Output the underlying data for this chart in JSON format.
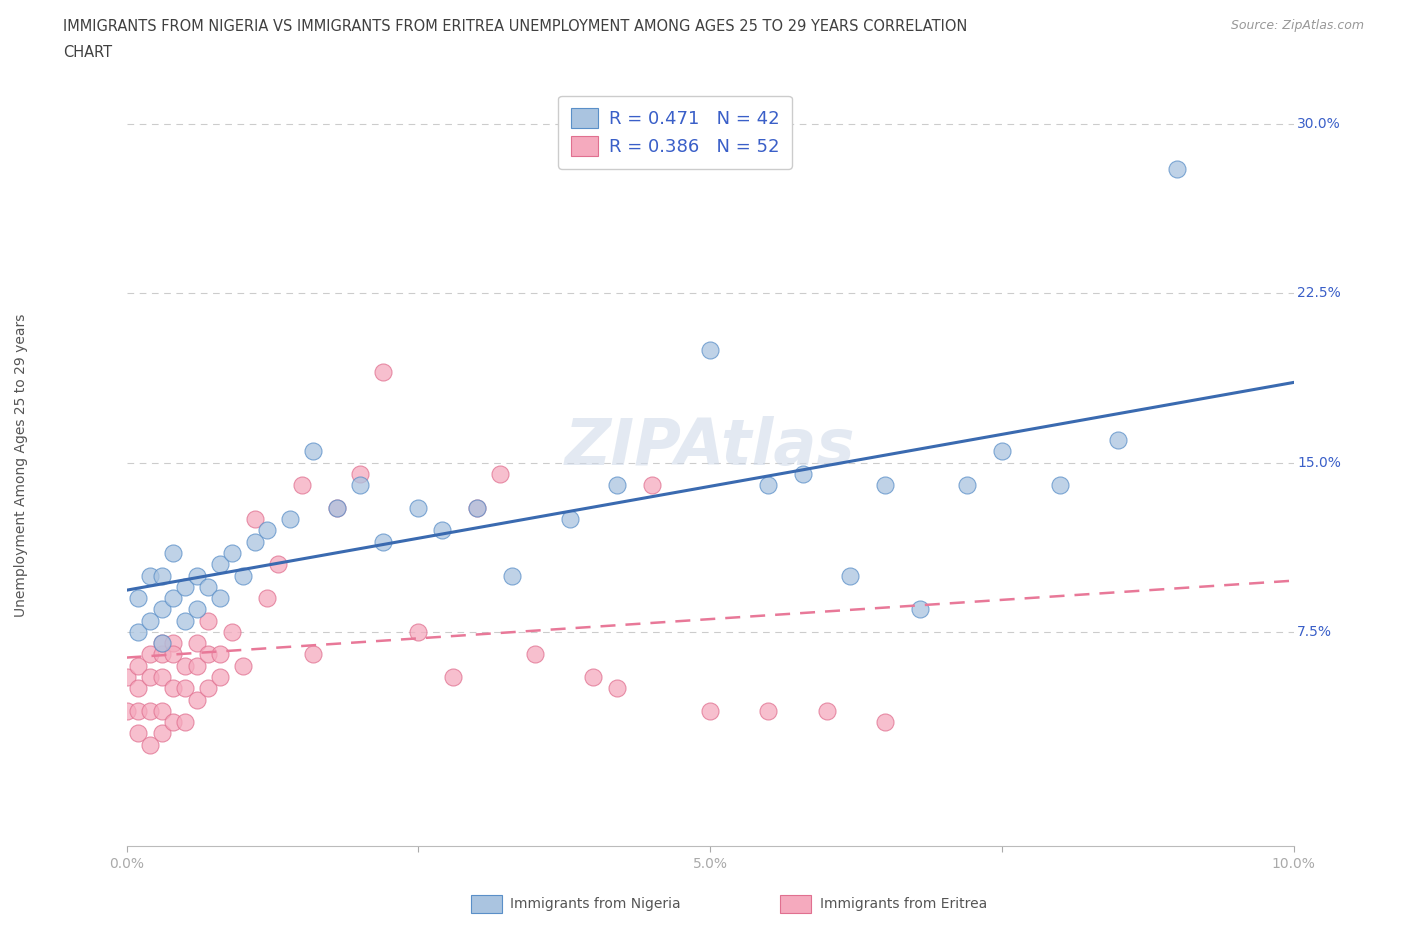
{
  "title_line1": "IMMIGRANTS FROM NIGERIA VS IMMIGRANTS FROM ERITREA UNEMPLOYMENT AMONG AGES 25 TO 29 YEARS CORRELATION",
  "title_line2": "CHART",
  "source_text": "Source: ZipAtlas.com",
  "ylabel": "Unemployment Among Ages 25 to 29 years",
  "xmin": 0.0,
  "xmax": 0.1,
  "ymin": -0.02,
  "ymax": 0.32,
  "nigeria_color": "#aac4e0",
  "eritrea_color": "#f5aabe",
  "nigeria_edge_color": "#5a8fc8",
  "eritrea_edge_color": "#e07090",
  "nigeria_line_color": "#3a6ab0",
  "eritrea_line_color": "#e87898",
  "nigeria_R": 0.471,
  "nigeria_N": 42,
  "eritrea_R": 0.386,
  "eritrea_N": 52,
  "legend_text_color": "#3a5fc8",
  "background_color": "#ffffff",
  "nigeria_scatter_x": [
    0.001,
    0.001,
    0.002,
    0.002,
    0.003,
    0.003,
    0.003,
    0.004,
    0.004,
    0.005,
    0.005,
    0.006,
    0.006,
    0.007,
    0.008,
    0.008,
    0.009,
    0.01,
    0.011,
    0.012,
    0.014,
    0.016,
    0.018,
    0.02,
    0.022,
    0.025,
    0.027,
    0.03,
    0.033,
    0.038,
    0.042,
    0.05,
    0.055,
    0.058,
    0.062,
    0.065,
    0.068,
    0.072,
    0.075,
    0.08,
    0.085,
    0.09
  ],
  "nigeria_scatter_y": [
    0.075,
    0.09,
    0.08,
    0.1,
    0.07,
    0.085,
    0.1,
    0.09,
    0.11,
    0.08,
    0.095,
    0.085,
    0.1,
    0.095,
    0.09,
    0.105,
    0.11,
    0.1,
    0.115,
    0.12,
    0.125,
    0.155,
    0.13,
    0.14,
    0.115,
    0.13,
    0.12,
    0.13,
    0.1,
    0.125,
    0.14,
    0.2,
    0.14,
    0.145,
    0.1,
    0.14,
    0.085,
    0.14,
    0.155,
    0.14,
    0.16,
    0.28
  ],
  "eritrea_scatter_x": [
    0.0,
    0.0,
    0.001,
    0.001,
    0.001,
    0.001,
    0.002,
    0.002,
    0.002,
    0.002,
    0.003,
    0.003,
    0.003,
    0.003,
    0.003,
    0.004,
    0.004,
    0.004,
    0.004,
    0.005,
    0.005,
    0.005,
    0.006,
    0.006,
    0.006,
    0.007,
    0.007,
    0.007,
    0.008,
    0.008,
    0.009,
    0.01,
    0.011,
    0.012,
    0.013,
    0.015,
    0.016,
    0.018,
    0.02,
    0.022,
    0.025,
    0.028,
    0.03,
    0.032,
    0.035,
    0.04,
    0.042,
    0.045,
    0.05,
    0.055,
    0.06,
    0.065
  ],
  "eritrea_scatter_y": [
    0.055,
    0.04,
    0.06,
    0.05,
    0.04,
    0.03,
    0.065,
    0.055,
    0.04,
    0.025,
    0.065,
    0.07,
    0.055,
    0.04,
    0.03,
    0.07,
    0.065,
    0.05,
    0.035,
    0.06,
    0.05,
    0.035,
    0.07,
    0.06,
    0.045,
    0.08,
    0.065,
    0.05,
    0.065,
    0.055,
    0.075,
    0.06,
    0.125,
    0.09,
    0.105,
    0.14,
    0.065,
    0.13,
    0.145,
    0.19,
    0.075,
    0.055,
    0.13,
    0.145,
    0.065,
    0.055,
    0.05,
    0.14,
    0.04,
    0.04,
    0.04,
    0.035
  ],
  "ytick_vals": [
    0.0,
    0.075,
    0.15,
    0.225,
    0.3
  ],
  "ytick_labels": [
    "",
    "7.5%",
    "15.0%",
    "22.5%",
    "30.0%"
  ],
  "xtick_vals": [
    0.0,
    0.025,
    0.05,
    0.075,
    0.1
  ],
  "xtick_labels": [
    "0.0%",
    "",
    "5.0%",
    "",
    "10.0%"
  ]
}
